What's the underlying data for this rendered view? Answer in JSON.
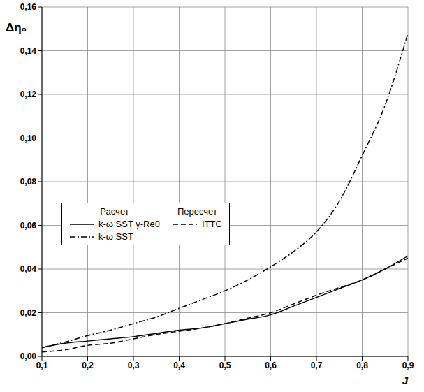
{
  "chart_data": {
    "type": "line",
    "x_label": "J",
    "y_label": "Δη₀",
    "x": [
      0.1,
      0.15,
      0.2,
      0.25,
      0.3,
      0.35,
      0.4,
      0.45,
      0.5,
      0.55,
      0.6,
      0.65,
      0.7,
      0.75,
      0.8,
      0.85,
      0.9
    ],
    "series": [
      {
        "name": "k-ω SST γ-Reθ",
        "group": "Расчет",
        "color": "#000000",
        "line_style": "solid",
        "values": [
          0.004,
          0.006,
          0.007,
          0.008,
          0.009,
          0.0105,
          0.012,
          0.013,
          0.015,
          0.017,
          0.019,
          0.023,
          0.027,
          0.031,
          0.035,
          0.04,
          0.046
        ]
      },
      {
        "name": "k-ω SST",
        "group": "Расчет",
        "color": "#000000",
        "line_style": "dashdot",
        "values": [
          0.004,
          0.0065,
          0.0095,
          0.012,
          0.015,
          0.018,
          0.022,
          0.026,
          0.03,
          0.035,
          0.041,
          0.048,
          0.057,
          0.071,
          0.092,
          0.115,
          0.148
        ]
      },
      {
        "name": "ITTC",
        "group": "Пересчет",
        "color": "#000000",
        "line_style": "dashed",
        "values": [
          0.002,
          0.003,
          0.005,
          0.006,
          0.008,
          0.01,
          0.0115,
          0.013,
          0.015,
          0.0175,
          0.02,
          0.024,
          0.028,
          0.0315,
          0.035,
          0.04,
          0.045
        ]
      }
    ],
    "xlim": [
      0.1,
      0.9
    ],
    "xticks": [
      {
        "value": 0.1,
        "label": "0,1"
      },
      {
        "value": 0.2,
        "label": "0,2"
      },
      {
        "value": 0.3,
        "label": "0,3"
      },
      {
        "value": 0.4,
        "label": "0,4"
      },
      {
        "value": 0.5,
        "label": "0,5"
      },
      {
        "value": 0.6,
        "label": "0,6"
      },
      {
        "value": 0.7,
        "label": "0,7"
      },
      {
        "value": 0.8,
        "label": "0,8"
      },
      {
        "value": 0.9,
        "label": "0,9"
      }
    ],
    "ylim": [
      0,
      0.16
    ],
    "yticks": [
      {
        "value": 0,
        "label": "0,00"
      },
      {
        "value": 0.02,
        "label": "0,02"
      },
      {
        "value": 0.04,
        "label": "0,04"
      },
      {
        "value": 0.06,
        "label": "0,06"
      },
      {
        "value": 0.08,
        "label": "0,08"
      },
      {
        "value": 0.1,
        "label": "0,10"
      },
      {
        "value": 0.12,
        "label": "0,12"
      },
      {
        "value": 0.14,
        "label": "0,14"
      },
      {
        "value": 0.16,
        "label": "0,16"
      }
    ],
    "grid": true,
    "legend": "left"
  }
}
